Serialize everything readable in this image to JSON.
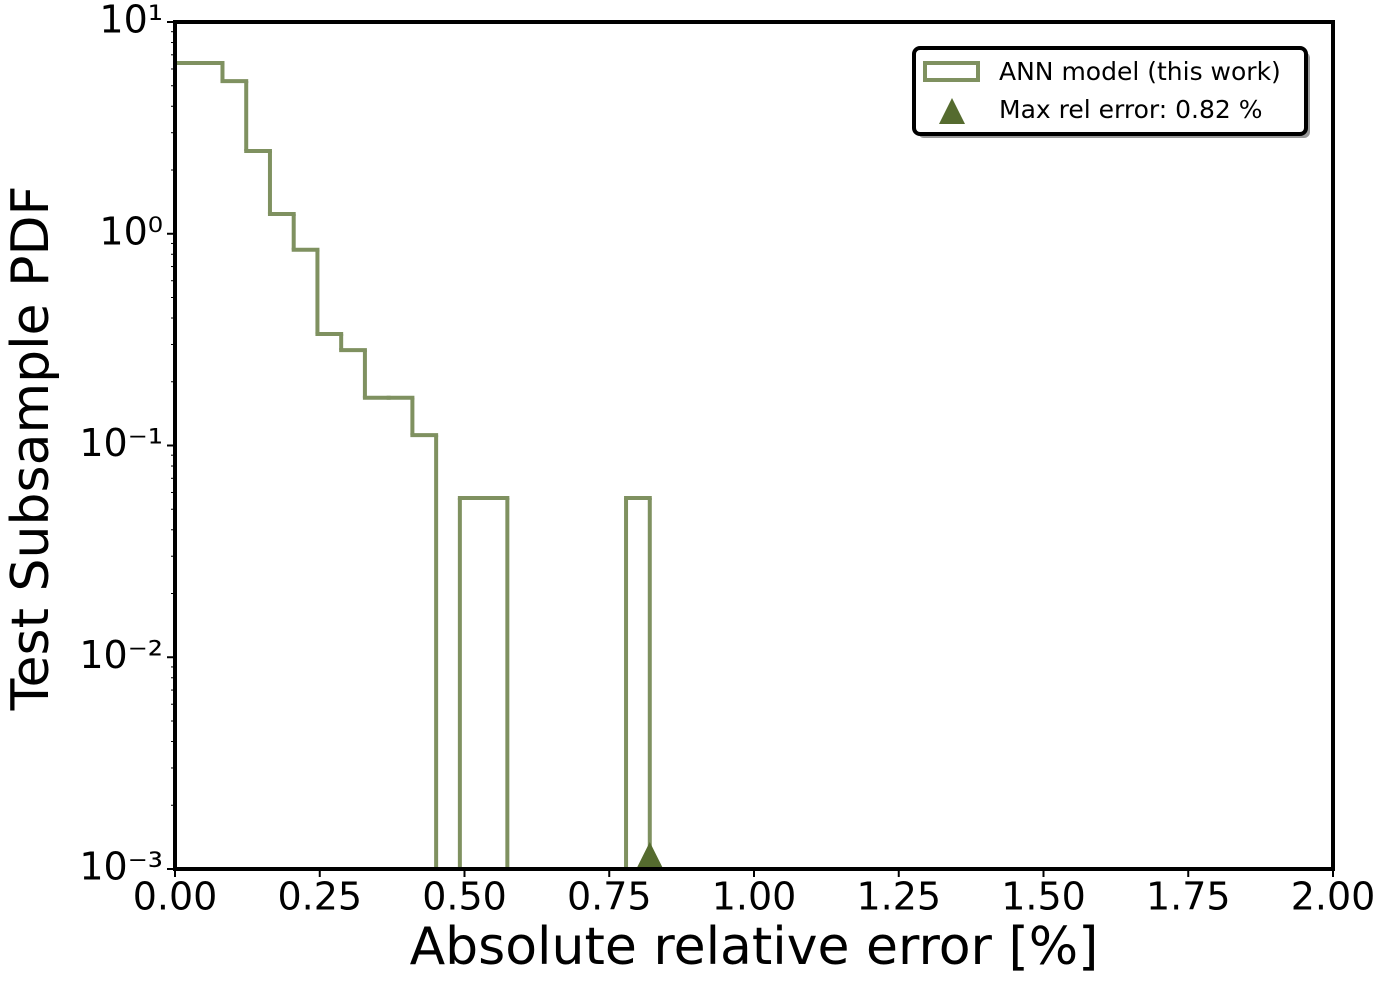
{
  "chart_data": {
    "type": "histogram",
    "xlabel": "Absolute relative error [%]",
    "ylabel": "Test Subsample PDF",
    "bins": [
      0,
      0.041,
      0.082,
      0.123,
      0.164,
      0.205,
      0.246,
      0.287,
      0.328,
      0.369,
      0.41,
      0.451,
      0.492,
      0.533,
      0.574,
      0.615,
      0.656,
      0.697,
      0.738,
      0.779,
      0.82
    ],
    "series": [
      {
        "name": "ANN model (this work)",
        "color": "#7f9160",
        "values": [
          6.4,
          6.4,
          5.26,
          2.46,
          1.24,
          0.84,
          0.336,
          0.282,
          0.168,
          0.168,
          0.112,
          0,
          0.0565,
          0.0565,
          0,
          0,
          0,
          0,
          0,
          0.0565
        ]
      }
    ],
    "max_marker": {
      "name": "Max rel error: 0.82 %",
      "color": "#556b2f",
      "x": 0.82,
      "y": 0.00114
    },
    "xlim": [
      0,
      2
    ],
    "xticks": [
      {
        "value": 0,
        "label": "0.00"
      },
      0.25,
      {
        "value": 0.5,
        "label": "0.50"
      },
      0.75,
      {
        "value": 1,
        "label": "1.00"
      },
      1.25,
      {
        "value": 1.5,
        "label": "1.50"
      },
      1.75,
      {
        "value": 2,
        "label": "2.00"
      }
    ],
    "ylim": [
      0.001,
      10
    ],
    "yticks": [
      {
        "value": 10,
        "label": "10¹"
      },
      {
        "value": 1,
        "label": "10⁰"
      },
      {
        "value": 0.1,
        "label": "10⁻¹"
      },
      {
        "value": 0.01,
        "label": "10⁻²"
      },
      {
        "value": 0.001,
        "label": "10⁻³"
      }
    ],
    "log_y": true,
    "legend": "upper right"
  }
}
